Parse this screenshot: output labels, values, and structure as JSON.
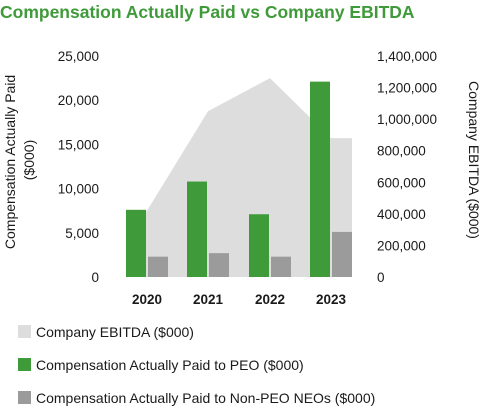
{
  "chart_data": {
    "type": "bar",
    "title": "Compensation Actually Paid vs Company EBITDA",
    "categories": [
      "2020",
      "2021",
      "2022",
      "2023"
    ],
    "y_left": {
      "label_lines": [
        "Compensation Actually Paid",
        "($000)"
      ],
      "lim": [
        0,
        25000
      ],
      "ticks": [
        "0",
        "5,000",
        "10,000",
        "15,000",
        "20,000",
        "25,000"
      ]
    },
    "y_right": {
      "label": "Company EBITDA ($000)",
      "lim": [
        0,
        1400000
      ],
      "ticks": [
        "0",
        "200,000",
        "400,000",
        "600,000",
        "800,000",
        "1,000,000",
        "1,200,000",
        "1,400,000"
      ]
    },
    "series": [
      {
        "name": "Company EBITDA ($000)",
        "kind": "area",
        "axis": "right",
        "values": [
          420000,
          1050000,
          1260000,
          880000
        ],
        "color": "#dddddd"
      },
      {
        "name": "Compensation Actually Paid to PEO ($000)",
        "kind": "bar",
        "axis": "left",
        "values": [
          7600,
          10800,
          7100,
          22100
        ],
        "color": "#3f9a3a"
      },
      {
        "name": "Compensation Actually Paid to Non-PEO NEOs ($000)",
        "kind": "bar",
        "axis": "left",
        "values": [
          2300,
          2700,
          2300,
          5100
        ],
        "color": "#9b9b9b"
      }
    ],
    "legend_position": "bottom",
    "grid": false
  }
}
